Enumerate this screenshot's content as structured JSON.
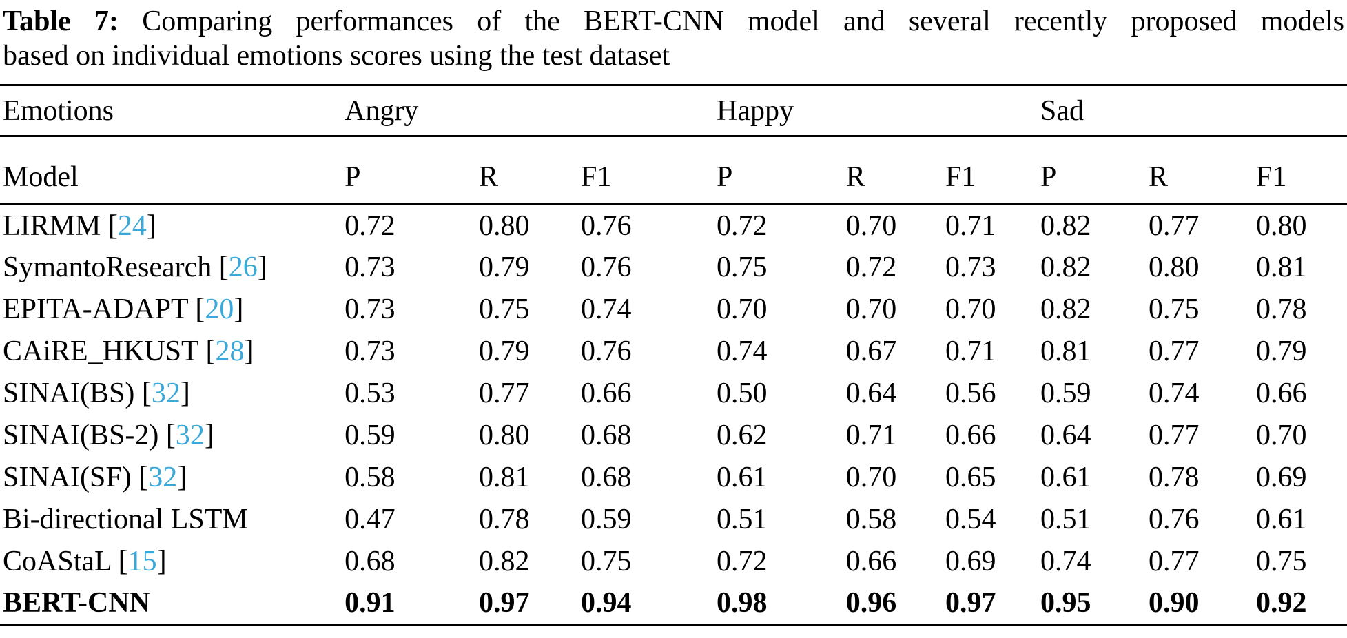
{
  "caption": {
    "label": "Table 7:",
    "line1_rest": "Comparing performances of the BERT-CNN model and several recently proposed models",
    "line2": "based on individual emotions scores using the test dataset"
  },
  "table": {
    "group_header": {
      "emotions_label": "Emotions",
      "groups": [
        "Angry",
        "Happy",
        "Sad"
      ]
    },
    "col_header": {
      "model_label": "Model",
      "metrics": [
        "P",
        "R",
        "F1"
      ]
    },
    "rows": [
      {
        "model": "LIRMM",
        "cite": "24",
        "bold": false,
        "values": [
          "0.72",
          "0.80",
          "0.76",
          "0.72",
          "0.70",
          "0.71",
          "0.82",
          "0.77",
          "0.80"
        ]
      },
      {
        "model": "SymantoResearch",
        "cite": "26",
        "bold": false,
        "values": [
          "0.73",
          "0.79",
          "0.76",
          "0.75",
          "0.72",
          "0.73",
          "0.82",
          "0.80",
          "0.81"
        ]
      },
      {
        "model": "EPITA-ADAPT",
        "cite": "20",
        "bold": false,
        "values": [
          "0.73",
          "0.75",
          "0.74",
          "0.70",
          "0.70",
          "0.70",
          "0.82",
          "0.75",
          "0.78"
        ]
      },
      {
        "model": "CAiRE_HKUST",
        "cite": "28",
        "bold": false,
        "values": [
          "0.73",
          "0.79",
          "0.76",
          "0.74",
          "0.67",
          "0.71",
          "0.81",
          "0.77",
          "0.79"
        ]
      },
      {
        "model": "SINAI(BS)",
        "cite": "32",
        "bold": false,
        "values": [
          "0.53",
          "0.77",
          "0.66",
          "0.50",
          "0.64",
          "0.56",
          "0.59",
          "0.74",
          "0.66"
        ]
      },
      {
        "model": "SINAI(BS-2)",
        "cite": "32",
        "bold": false,
        "values": [
          "0.59",
          "0.80",
          "0.68",
          "0.62",
          "0.71",
          "0.66",
          "0.64",
          "0.77",
          "0.70"
        ]
      },
      {
        "model": "SINAI(SF)",
        "cite": "32",
        "bold": false,
        "values": [
          "0.58",
          "0.81",
          "0.68",
          "0.61",
          "0.70",
          "0.65",
          "0.61",
          "0.78",
          "0.69"
        ]
      },
      {
        "model": "Bi-directional LSTM",
        "cite": null,
        "bold": false,
        "values": [
          "0.47",
          "0.78",
          "0.59",
          "0.51",
          "0.58",
          "0.54",
          "0.51",
          "0.76",
          "0.61"
        ]
      },
      {
        "model": "CoAStaL",
        "cite": "15",
        "bold": false,
        "values": [
          "0.68",
          "0.82",
          "0.75",
          "0.72",
          "0.66",
          "0.69",
          "0.74",
          "0.77",
          "0.75"
        ]
      },
      {
        "model": "BERT-CNN",
        "cite": null,
        "bold": true,
        "values": [
          "0.91",
          "0.97",
          "0.94",
          "0.98",
          "0.96",
          "0.97",
          "0.95",
          "0.90",
          "0.92"
        ]
      }
    ]
  },
  "colors": {
    "citation_blue": "#3aa8d9",
    "text": "#000000",
    "background": "#ffffff",
    "rule": "#000000"
  }
}
